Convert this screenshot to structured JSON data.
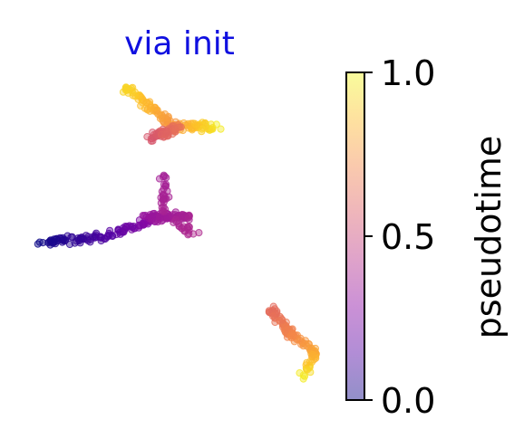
{
  "chart_data": {
    "type": "scatter",
    "title": "via init",
    "colors": {
      "title": "#1010e0",
      "colormap": [
        "#0d0887",
        "#5302a3",
        "#8b0aa5",
        "#b83289",
        "#db5c68",
        "#f48849",
        "#febd2a",
        "#f0f921"
      ]
    },
    "colorbar": {
      "label": "pseudotime",
      "range": [
        0.0,
        1.0
      ],
      "ticks": [
        0.0,
        0.5,
        1.0
      ],
      "tick_labels": [
        "0.0",
        "0.5",
        "1.0"
      ],
      "alpha": 0.45
    },
    "axes": "off",
    "grid": false,
    "clusters": [
      {
        "name": "upper",
        "segments": [
          {
            "from": [
              -0.3,
              0.95
            ],
            "to": [
              0.05,
              0.65
            ],
            "t": [
              0.92,
              0.75
            ],
            "n": 70
          },
          {
            "from": [
              0.05,
              0.65
            ],
            "to": [
              0.45,
              0.62
            ],
            "t": [
              0.75,
              0.98
            ],
            "n": 55
          },
          {
            "from": [
              -0.1,
              0.55
            ],
            "to": [
              0.12,
              0.62
            ],
            "t": [
              0.55,
              0.65
            ],
            "n": 60
          }
        ]
      },
      {
        "name": "middle",
        "segments": [
          {
            "from": [
              -1.0,
              -0.3
            ],
            "to": [
              -0.5,
              -0.27
            ],
            "t": [
              0.0,
              0.12
            ],
            "n": 60
          },
          {
            "from": [
              -0.5,
              -0.27
            ],
            "to": [
              -0.08,
              -0.12
            ],
            "t": [
              0.12,
              0.3
            ],
            "n": 55
          },
          {
            "from": [
              -0.15,
              -0.1
            ],
            "to": [
              0.2,
              -0.1
            ],
            "t": [
              0.32,
              0.38
            ],
            "n": 80
          },
          {
            "from": [
              0.0,
              0.25
            ],
            "to": [
              0.0,
              -0.05
            ],
            "t": [
              0.36,
              0.38
            ],
            "n": 30
          },
          {
            "from": [
              0.1,
              -0.15
            ],
            "to": [
              0.25,
              -0.25
            ],
            "t": [
              0.38,
              0.4
            ],
            "n": 20
          }
        ]
      },
      {
        "name": "lower",
        "segments": [
          {
            "from": [
              0.85,
              -0.85
            ],
            "to": [
              1.0,
              -1.05
            ],
            "t": [
              0.62,
              0.7
            ],
            "n": 60
          },
          {
            "from": [
              1.0,
              -1.05
            ],
            "to": [
              1.2,
              -1.2
            ],
            "t": [
              0.7,
              0.8
            ],
            "n": 40
          },
          {
            "from": [
              1.2,
              -1.2
            ],
            "to": [
              1.1,
              -1.42
            ],
            "t": [
              0.8,
              0.98
            ],
            "n": 25
          }
        ]
      }
    ]
  }
}
